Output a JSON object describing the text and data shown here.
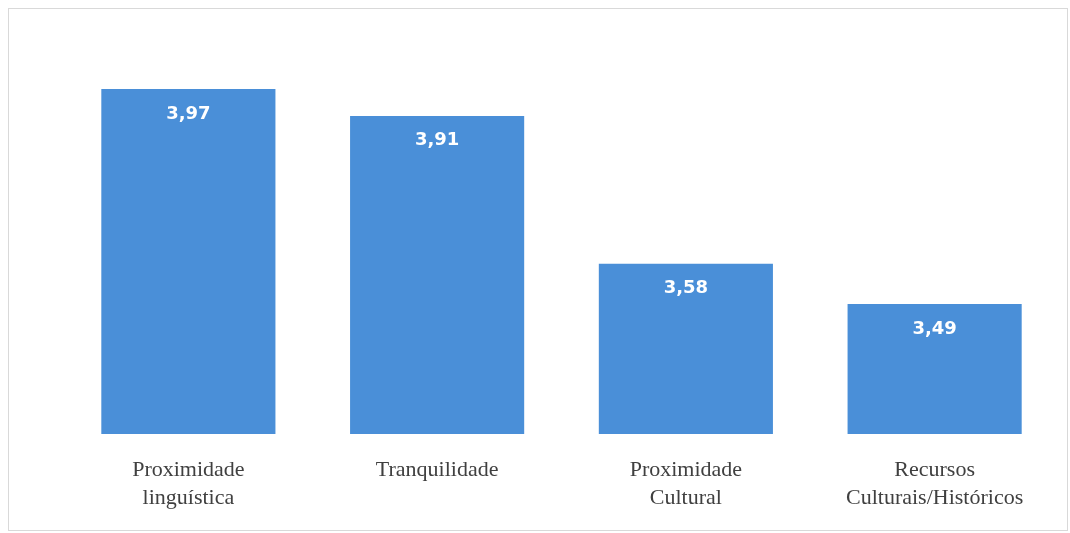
{
  "chart_data": {
    "type": "bar",
    "categories": [
      "Proximidade linguística",
      "Tranquilidade",
      "Proximidade Cultural",
      "Recursos Culturais/Históricos"
    ],
    "values": [
      3.97,
      3.91,
      3.58,
      3.49
    ],
    "value_labels": [
      "3,97",
      "3,91",
      "3,58",
      "3,49"
    ],
    "color": "#4a8fd8",
    "ylim": [
      3.2,
      3.97
    ]
  }
}
